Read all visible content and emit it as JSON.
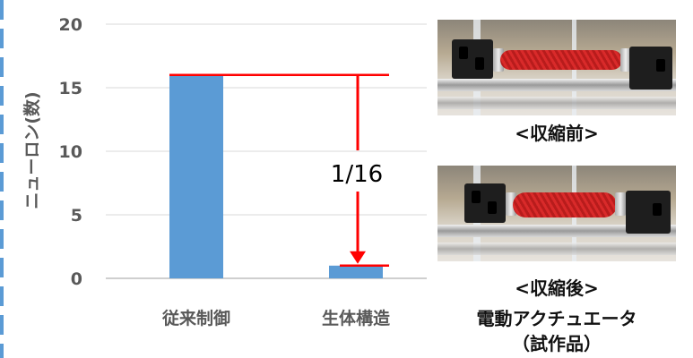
{
  "chart_data": {
    "type": "bar",
    "categories": [
      "従来制御",
      "生体構造"
    ],
    "values": [
      16,
      1
    ],
    "ylabel": "ニューロン(数)",
    "yticks": [
      0,
      5,
      10,
      15,
      20
    ],
    "ylim": [
      0,
      20
    ],
    "bar_color": "#5b9bd5",
    "annotation": {
      "label": "1/16",
      "from_value": 16,
      "to_value": 1,
      "color": "#ff0000"
    }
  },
  "photos": {
    "before_caption": "<収縮前>",
    "after_caption": "<収縮後>",
    "title_line1": "電動アクチュエータ",
    "title_line2": "（試作品）"
  }
}
